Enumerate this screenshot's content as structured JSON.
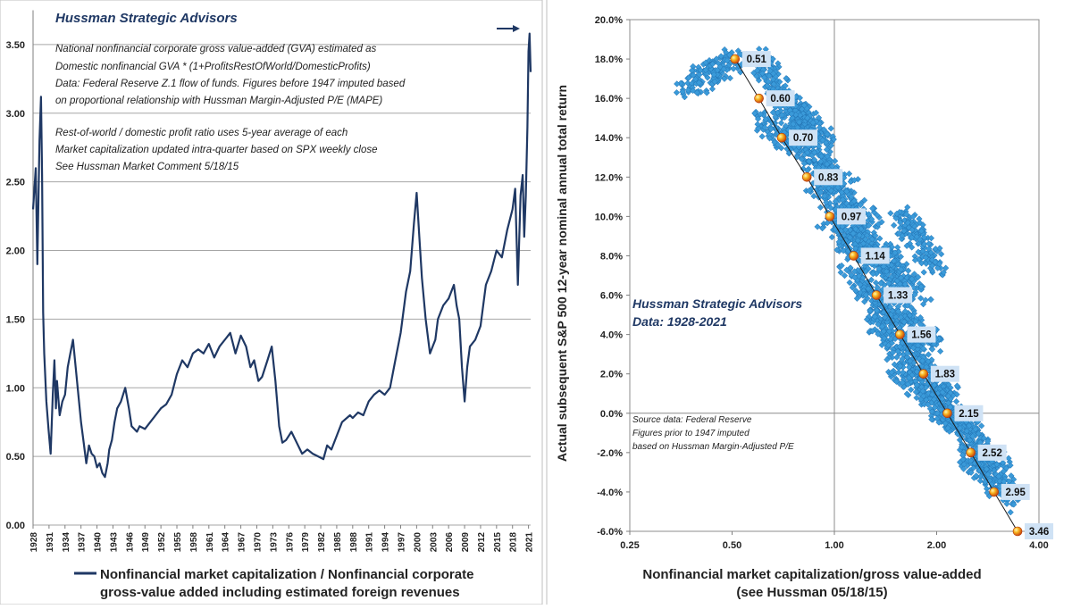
{
  "chart_data": [
    {
      "type": "line",
      "title": "Hussman Strategic Advisors",
      "notes": [
        "National nonfinancial corporate gross value-added (GVA) estimated as",
        "Domestic nonfinancial GVA * (1+ProfitsRestOfWorld/DomesticProfits)",
        "Data: Federal Reserve Z.1 flow of funds. Figures before 1947 imputed based",
        "on proportional relationship with Hussman Margin-Adjusted P/E (MAPE)",
        "",
        "Rest-of-world / domestic profit ratio uses 5-year average of each",
        "Market capitalization updated intra-quarter  based on SPX weekly close",
        "See Hussman Market Comment 5/18/15"
      ],
      "legend": "Nonfinancial market capitalization / Nonfinancial corporate",
      "legend_line2": "gross-value added including estimated foreign revenues",
      "ylim": [
        0,
        3.75
      ],
      "yticks": [
        "0.00",
        "0.50",
        "1.00",
        "1.50",
        "2.00",
        "2.50",
        "3.00",
        "3.50"
      ],
      "xlim": [
        1928,
        2021.4
      ],
      "xticks": [
        "1928",
        "1931",
        "1934",
        "1937",
        "1940",
        "1943",
        "1946",
        "1949",
        "1952",
        "1955",
        "1958",
        "1961",
        "1964",
        "1967",
        "1970",
        "1973",
        "1976",
        "1979",
        "1982",
        "1985",
        "1988",
        "1991",
        "1994",
        "1997",
        "2000",
        "2003",
        "2006",
        "2009",
        "2012",
        "2015",
        "2018",
        "2021"
      ],
      "series": [
        {
          "color": "#1f3864",
          "x": [
            1928.0,
            1928.5,
            1928.8,
            1929.2,
            1929.5,
            1929.7,
            1929.9,
            1930.1,
            1930.5,
            1930.9,
            1931.3,
            1931.7,
            1932.0,
            1932.3,
            1932.5,
            1933.0,
            1933.5,
            1934.0,
            1934.5,
            1935.0,
            1935.5,
            1936.0,
            1936.5,
            1937.0,
            1937.5,
            1938.0,
            1938.5,
            1939.0,
            1939.5,
            1940.0,
            1940.5,
            1941.0,
            1941.5,
            1942.0,
            1942.3,
            1942.8,
            1943.3,
            1943.8,
            1944.5,
            1945.3,
            1946.0,
            1946.5,
            1947.0,
            1947.5,
            1948.0,
            1949.0,
            1950.0,
            1951.0,
            1952.0,
            1953.0,
            1954.0,
            1955.0,
            1956.0,
            1957.0,
            1958.0,
            1959.0,
            1960.0,
            1961.0,
            1962.0,
            1963.0,
            1964.0,
            1965.0,
            1966.0,
            1967.0,
            1968.0,
            1968.8,
            1969.5,
            1970.3,
            1971.0,
            1972.0,
            1972.8,
            1973.5,
            1974.2,
            1974.8,
            1975.5,
            1976.5,
            1977.5,
            1978.5,
            1979.5,
            1980.5,
            1981.5,
            1982.5,
            1983.2,
            1984.0,
            1985.0,
            1986.0,
            1987.5,
            1988.0,
            1989.0,
            1990.0,
            1991.0,
            1992.0,
            1993.0,
            1994.0,
            1995.0,
            1996.0,
            1997.0,
            1998.0,
            1998.8,
            1999.5,
            2000.0,
            2000.5,
            2001.0,
            2001.7,
            2002.5,
            2003.0,
            2003.5,
            2004.0,
            2005.0,
            2006.0,
            2007.0,
            2007.5,
            2008.0,
            2008.5,
            2009.0,
            2009.5,
            2010.0,
            2011.0,
            2012.0,
            2013.0,
            2014.0,
            2015.0,
            2016.0,
            2017.0,
            2018.0,
            2018.5,
            2019.0,
            2019.5,
            2019.9,
            2020.2,
            2020.5,
            2020.8,
            2021.0,
            2021.2,
            2021.4
          ],
          "y": [
            2.3,
            2.6,
            1.9,
            2.8,
            3.12,
            2.55,
            1.55,
            1.25,
            0.9,
            0.7,
            0.52,
            0.95,
            1.2,
            0.85,
            1.05,
            0.8,
            0.9,
            0.95,
            1.15,
            1.25,
            1.35,
            1.15,
            0.95,
            0.75,
            0.6,
            0.45,
            0.58,
            0.52,
            0.5,
            0.42,
            0.45,
            0.38,
            0.35,
            0.45,
            0.55,
            0.62,
            0.75,
            0.85,
            0.9,
            1.0,
            0.85,
            0.72,
            0.7,
            0.68,
            0.72,
            0.7,
            0.75,
            0.8,
            0.85,
            0.88,
            0.95,
            1.1,
            1.2,
            1.15,
            1.25,
            1.28,
            1.25,
            1.32,
            1.22,
            1.3,
            1.35,
            1.4,
            1.25,
            1.38,
            1.3,
            1.15,
            1.2,
            1.05,
            1.08,
            1.2,
            1.3,
            1.05,
            0.72,
            0.6,
            0.62,
            0.68,
            0.6,
            0.52,
            0.55,
            0.52,
            0.5,
            0.48,
            0.58,
            0.55,
            0.65,
            0.75,
            0.8,
            0.78,
            0.82,
            0.8,
            0.9,
            0.95,
            0.98,
            0.95,
            1.0,
            1.2,
            1.4,
            1.7,
            1.85,
            2.2,
            2.42,
            2.1,
            1.8,
            1.5,
            1.25,
            1.3,
            1.35,
            1.5,
            1.6,
            1.65,
            1.75,
            1.6,
            1.5,
            1.15,
            0.9,
            1.15,
            1.3,
            1.35,
            1.45,
            1.75,
            1.85,
            2.0,
            1.95,
            2.15,
            2.3,
            2.45,
            1.75,
            2.4,
            2.55,
            2.1,
            2.4,
            2.9,
            3.45,
            3.58,
            3.3
          ]
        }
      ]
    },
    {
      "type": "scatter",
      "title": "Hussman Strategic Advisors",
      "subtitle": "Data: 1928-2021",
      "source_note": [
        "Source data: Federal Reserve",
        "Figures prior to 1947 imputed",
        "based on Hussman Margin-Adjusted P/E"
      ],
      "xlabel": "Nonfinancial market capitalization/gross value-added",
      "xlabel_line2": "(see Hussman 05/18/15)",
      "ylabel": "Actual subsequent S&P 500 12-year nominal annual total return",
      "x_scale": "log",
      "xlim": [
        0.25,
        4.0
      ],
      "xticks": [
        "0.25",
        "0.50",
        "1.00",
        "2.00",
        "4.00"
      ],
      "ylim": [
        -6,
        20
      ],
      "yticks": [
        "-6.0%",
        "-4.0%",
        "-2.0%",
        "0.0%",
        "2.0%",
        "4.0%",
        "6.0%",
        "8.0%",
        "10.0%",
        "12.0%",
        "14.0%",
        "16.0%",
        "18.0%",
        "20.0%"
      ],
      "scatter_color": "#3a9ad9",
      "cloud": [
        {
          "x": [
            0.52,
            0.36
          ],
          "y": [
            18.0,
            16.5
          ]
        },
        {
          "x": [
            0.6,
            0.85
          ],
          "y": [
            18.0,
            14.0
          ]
        },
        {
          "x": [
            0.72,
            0.95
          ],
          "y": [
            16.0,
            13.5
          ]
        },
        {
          "x": [
            0.62,
            1.1
          ],
          "y": [
            15.0,
            11.5
          ]
        },
        {
          "x": [
            0.85,
            1.3
          ],
          "y": [
            12.0,
            9.5
          ]
        },
        {
          "x": [
            0.95,
            1.55
          ],
          "y": [
            10.0,
            7.5
          ]
        },
        {
          "x": [
            1.05,
            1.8
          ],
          "y": [
            9.0,
            6.0
          ]
        },
        {
          "x": [
            1.55,
            2.0
          ],
          "y": [
            10.0,
            7.5
          ]
        },
        {
          "x": [
            1.1,
            1.95
          ],
          "y": [
            7.0,
            3.5
          ]
        },
        {
          "x": [
            1.3,
            2.2
          ],
          "y": [
            5.0,
            1.0
          ]
        },
        {
          "x": [
            1.5,
            2.6
          ],
          "y": [
            2.5,
            -1.0
          ]
        },
        {
          "x": [
            2.0,
            3.1
          ],
          "y": [
            0.5,
            -3.0
          ]
        },
        {
          "x": [
            2.5,
            3.4
          ],
          "y": [
            -2.0,
            -4.5
          ]
        }
      ],
      "fit_line": {
        "x": [
          0.51,
          0.6,
          0.7,
          0.83,
          0.97,
          1.14,
          1.33,
          1.56,
          1.83,
          2.15,
          2.52,
          2.95,
          3.46
        ],
        "y": [
          18.0,
          16.0,
          14.0,
          12.0,
          10.0,
          8.0,
          6.0,
          4.0,
          2.0,
          0.0,
          -2.0,
          -4.0,
          -6.0
        ],
        "labels": [
          "0.51",
          "0.60",
          "0.70",
          "0.83",
          "0.97",
          "1.14",
          "1.33",
          "1.56",
          "1.83",
          "2.15",
          "2.52",
          "2.95",
          "3.46"
        ]
      }
    }
  ]
}
